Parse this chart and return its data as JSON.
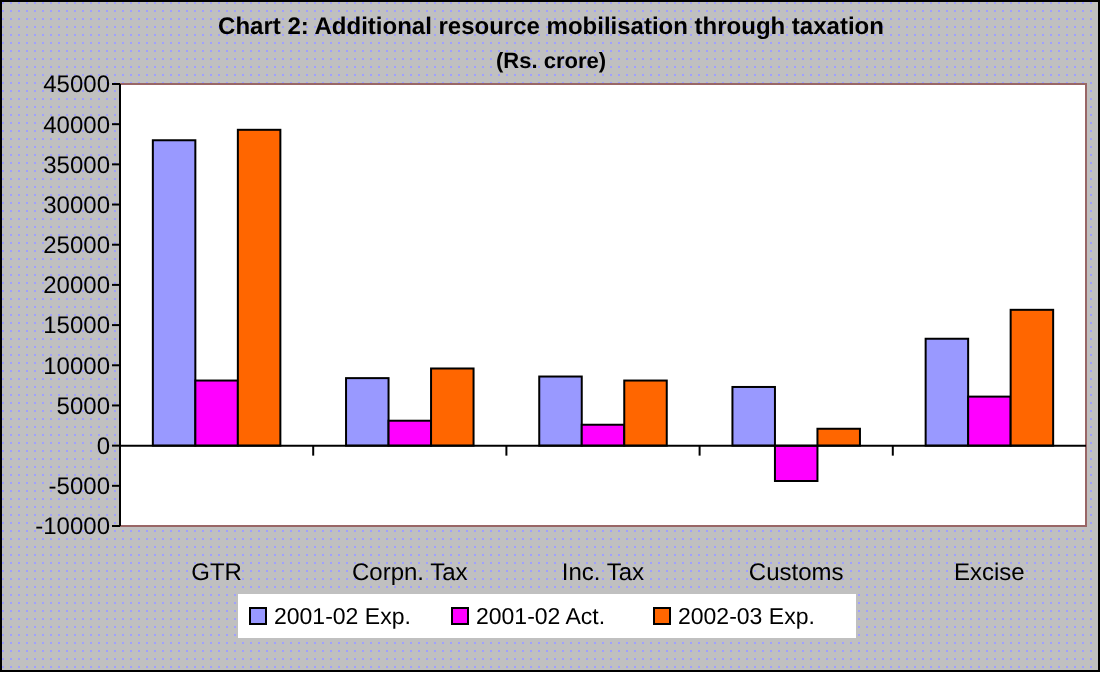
{
  "chart_data": {
    "type": "bar",
    "title": "Chart 2: Additional resource mobilisation through taxation",
    "subtitle": "(Rs. crore)",
    "categories": [
      "GTR",
      "Corpn. Tax",
      "Inc. Tax",
      "Customs",
      "Excise"
    ],
    "series": [
      {
        "name": "2001-02 Exp.",
        "color": "#9999ff",
        "values": [
          38000,
          8400,
          8600,
          7300,
          13300
        ]
      },
      {
        "name": "2001-02 Act.",
        "color": "#ff00ff",
        "values": [
          8100,
          3100,
          2600,
          -4400,
          6100
        ]
      },
      {
        "name": "2002-03 Exp.",
        "color": "#ff6600",
        "values": [
          39300,
          9600,
          8100,
          2100,
          16900
        ]
      }
    ],
    "ylim": [
      -10000,
      45000
    ],
    "yticks": [
      -10000,
      -5000,
      0,
      5000,
      10000,
      15000,
      20000,
      25000,
      30000,
      35000,
      40000,
      45000
    ],
    "legend": "bottom"
  }
}
